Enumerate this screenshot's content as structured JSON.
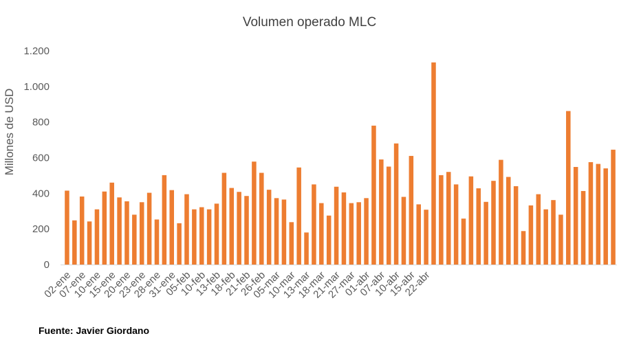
{
  "chart_data": {
    "type": "bar",
    "title": "Volumen operado MLC",
    "xlabel": "",
    "ylabel": "Millones de USD",
    "ylim": [
      0,
      1200
    ],
    "yticks": [
      0,
      200,
      400,
      600,
      800,
      1000,
      1200
    ],
    "ytick_labels": [
      "0",
      "200",
      "400",
      "600",
      "800",
      "1.000",
      "1.200"
    ],
    "grid": false,
    "legend": "none",
    "bar_color": "#ED7D31",
    "xtick_labels": [
      {
        "label": "02-ene",
        "index": 0
      },
      {
        "label": "07-ene",
        "index": 2
      },
      {
        "label": "10-ene",
        "index": 4
      },
      {
        "label": "15-ene",
        "index": 6
      },
      {
        "label": "20-ene",
        "index": 8
      },
      {
        "label": "23-ene",
        "index": 10
      },
      {
        "label": "28-ene",
        "index": 12
      },
      {
        "label": "31-ene",
        "index": 14
      },
      {
        "label": "05-feb",
        "index": 16
      },
      {
        "label": "10-feb",
        "index": 18
      },
      {
        "label": "13-feb",
        "index": 20
      },
      {
        "label": "18-feb",
        "index": 22
      },
      {
        "label": "21-feb",
        "index": 24
      },
      {
        "label": "26-feb",
        "index": 26
      },
      {
        "label": "05-mar",
        "index": 28
      },
      {
        "label": "10-mar",
        "index": 30
      },
      {
        "label": "13-mar",
        "index": 32
      },
      {
        "label": "18-mar",
        "index": 34
      },
      {
        "label": "21-mar",
        "index": 36
      },
      {
        "label": "27-mar",
        "index": 38
      },
      {
        "label": "01-abr",
        "index": 40
      },
      {
        "label": "07-abr",
        "index": 42
      },
      {
        "label": "10-abr",
        "index": 44
      },
      {
        "label": "15-abr",
        "index": 46
      },
      {
        "label": "22-abr",
        "index": 48
      }
    ],
    "values": [
      415,
      248,
      382,
      242,
      310,
      410,
      460,
      377,
      355,
      280,
      350,
      403,
      253,
      502,
      418,
      232,
      395,
      310,
      322,
      310,
      342,
      515,
      430,
      408,
      385,
      578,
      515,
      420,
      373,
      365,
      238,
      545,
      180,
      450,
      345,
      275,
      437,
      405,
      345,
      350,
      373,
      780,
      590,
      550,
      680,
      380,
      610,
      338,
      308,
      1135,
      502,
      520,
      450,
      258,
      495,
      428,
      352,
      470,
      588,
      492,
      440,
      188,
      332,
      395,
      310,
      362,
      280,
      862,
      548,
      413,
      575,
      565,
      540,
      645
    ]
  },
  "source": "Fuente: Javier Giordano"
}
